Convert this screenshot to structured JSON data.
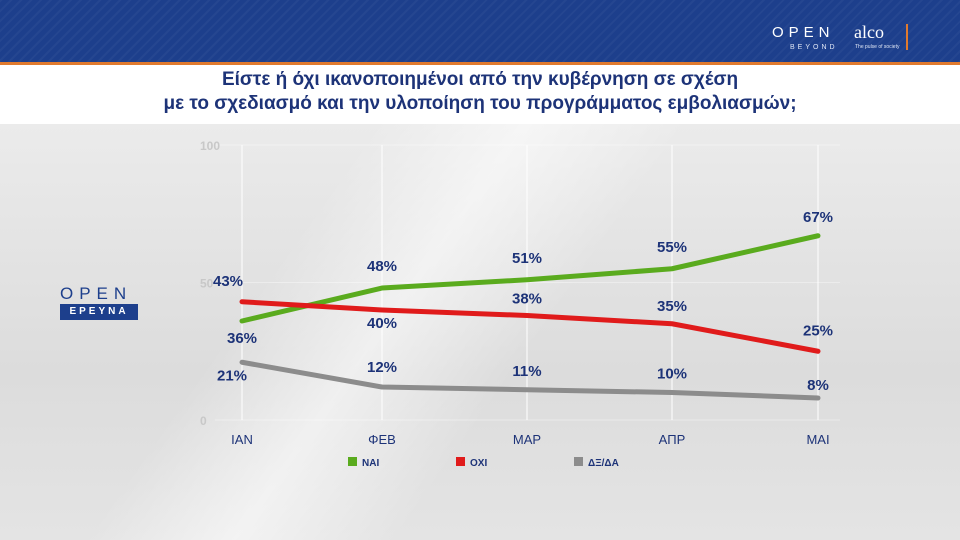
{
  "header": {
    "brand_open": "OPEN",
    "brand_beyond": "BEYOND",
    "brand_alco": "alco",
    "brand_alco_tagline": "The pulse of society"
  },
  "title": {
    "line1": "Είστε ή όχι ικανοποιημένοι από την κυβέρνηση σε σχέση",
    "line2": "με το σχεδιασμό και την υλοποίηση του προγράμματος εμβολιασμών;"
  },
  "side_logo": {
    "open": "OPEN",
    "label": "ΕΡΕΥΝΑ"
  },
  "colors": {
    "header_bg": "#1d3f8c",
    "title": "#1d3378",
    "nai": "#5aab1e",
    "oxi": "#e01b1b",
    "dxda": "#8c8c8c",
    "label": "#1d3378"
  },
  "chart_data": {
    "type": "line",
    "categories": [
      "ΙΑΝ",
      "ΦΕΒ",
      "ΜΑΡ",
      "ΑΠΡ",
      "ΜΑΙ"
    ],
    "ylim": [
      0,
      100
    ],
    "yticks": [
      "0",
      "50",
      "100"
    ],
    "grid": true,
    "legend_position": "bottom",
    "series": [
      {
        "name": "ΝΑΙ",
        "values": [
          36,
          48,
          51,
          55,
          67
        ],
        "labels": [
          "36%",
          "48%",
          "51%",
          "55%",
          "67%"
        ],
        "color": "#5aab1e"
      },
      {
        "name": "ΟΧΙ",
        "values": [
          43,
          40,
          38,
          35,
          25
        ],
        "labels": [
          "43%",
          "40%",
          "38%",
          "35%",
          "25%"
        ],
        "color": "#e01b1b"
      },
      {
        "name": "ΔΞ/ΔΑ",
        "values": [
          21,
          12,
          11,
          10,
          8
        ],
        "labels": [
          "21%",
          "12%",
          "11%",
          "10%",
          "8%"
        ],
        "color": "#8c8c8c"
      }
    ]
  }
}
